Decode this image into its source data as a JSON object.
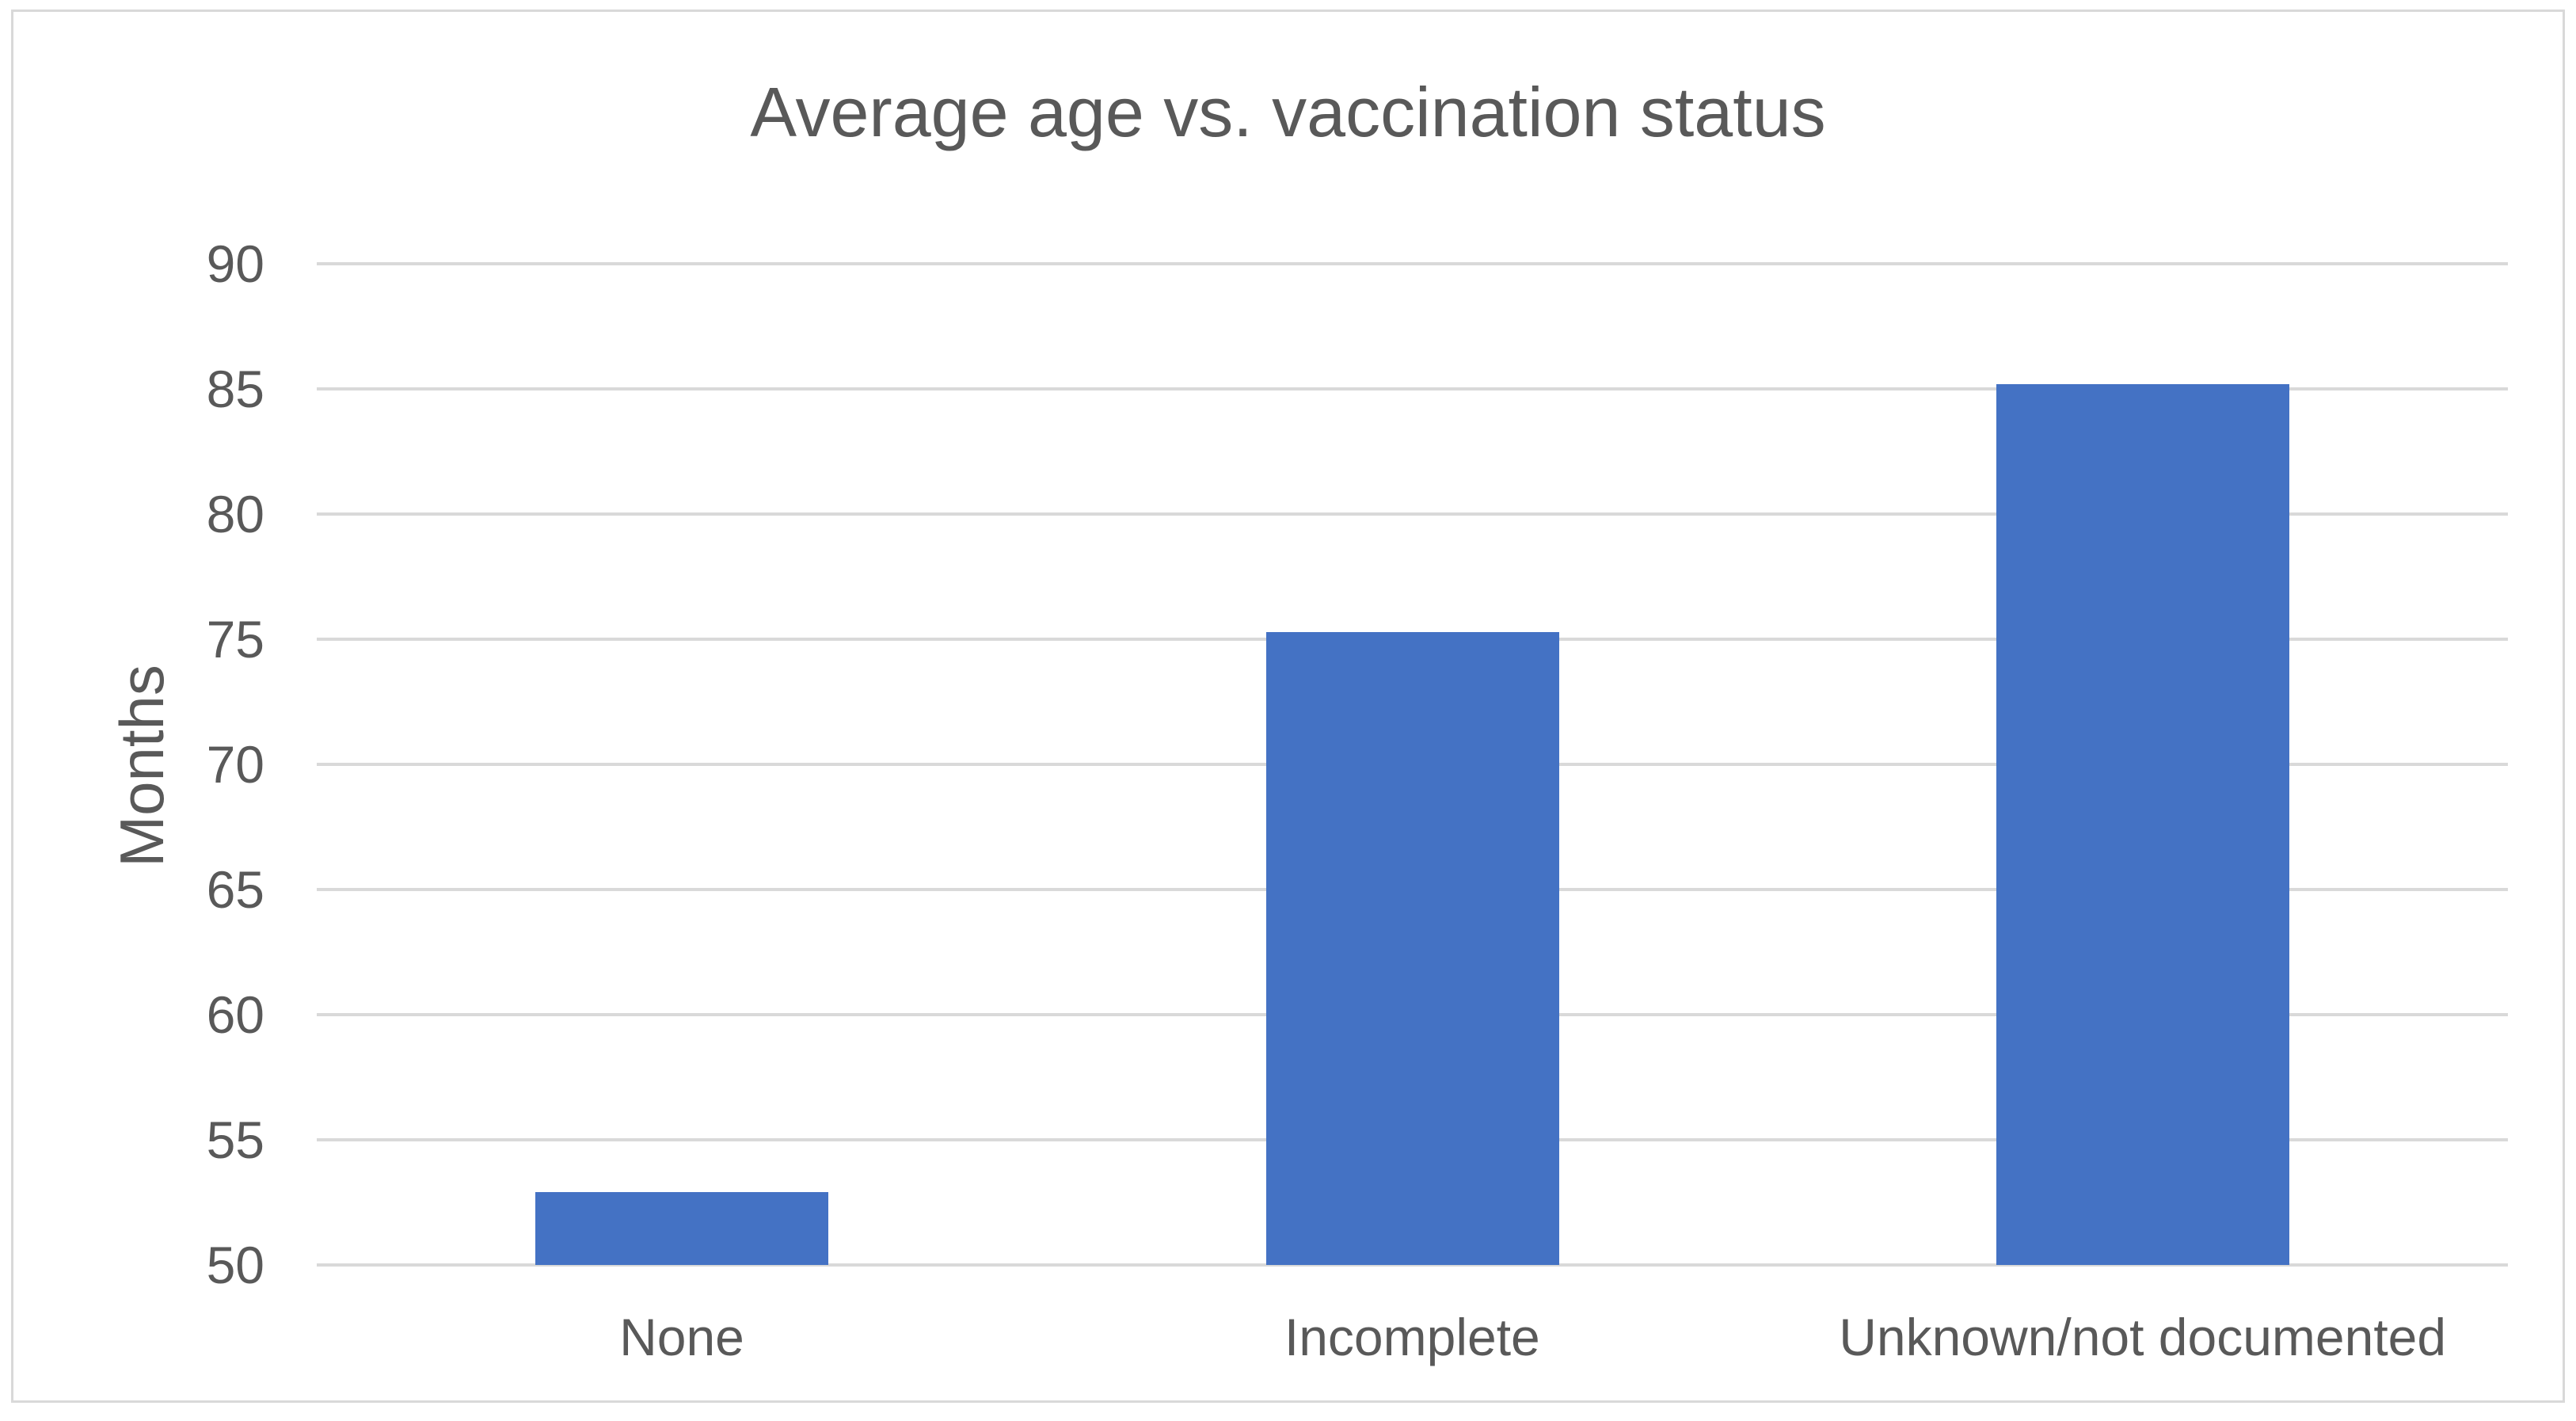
{
  "figure": {
    "background_color": "#ffffff",
    "border_color": "#d9d9d9"
  },
  "chart_data": {
    "type": "bar",
    "title": "Average age vs. vaccination status",
    "xlabel": "",
    "ylabel": "Months",
    "categories": [
      "None",
      "Incomplete",
      "Unknown/not documented"
    ],
    "values": [
      52.9,
      75.3,
      85.2
    ],
    "ylim": [
      50,
      90
    ],
    "yticks": [
      50,
      55,
      60,
      65,
      70,
      75,
      80,
      85,
      90
    ],
    "ytick_step": 5,
    "grid": "horizontal-only",
    "legend_position": "none",
    "bar_color": "#4472c4",
    "gridline_color": "#d9d9d9",
    "text_color": "#595959"
  }
}
